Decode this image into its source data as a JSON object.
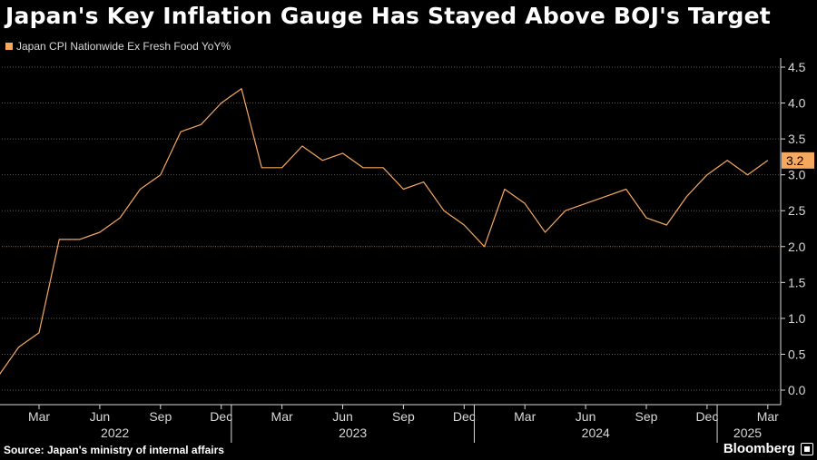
{
  "title": "Japan's Key Inflation Gauge Has Stayed Above BOJ's Target",
  "legend_label": "Japan CPI Nationwide Ex Fresh Food YoY%",
  "source": "Source: Japan's ministry of internal affairs",
  "brand": "Bloomberg",
  "colors": {
    "background": "#000000",
    "series": "#f5a85e",
    "target_line": "#c0653a",
    "grid": "#5a5a5a",
    "axis_text": "#d9d9d9"
  },
  "chart_data": {
    "type": "line",
    "title": "Japan's Key Inflation Gauge Has Stayed Above BOJ's Target",
    "series": [
      {
        "name": "Japan CPI Nationwide Ex Fresh Food YoY%",
        "x": [
          "2022-01",
          "2022-02",
          "2022-03",
          "2022-04",
          "2022-05",
          "2022-06",
          "2022-07",
          "2022-08",
          "2022-09",
          "2022-10",
          "2022-11",
          "2022-12",
          "2023-01",
          "2023-02",
          "2023-03",
          "2023-04",
          "2023-05",
          "2023-06",
          "2023-07",
          "2023-08",
          "2023-09",
          "2023-10",
          "2023-11",
          "2023-12",
          "2024-01",
          "2024-02",
          "2024-03",
          "2024-04",
          "2024-05",
          "2024-06",
          "2024-07",
          "2024-08",
          "2024-09",
          "2024-10",
          "2024-11",
          "2024-12",
          "2025-01",
          "2025-02",
          "2025-03"
        ],
        "values": [
          0.2,
          0.6,
          0.8,
          2.1,
          2.1,
          2.2,
          2.4,
          2.8,
          3.0,
          3.6,
          3.7,
          4.0,
          4.2,
          3.1,
          3.1,
          3.4,
          3.2,
          3.3,
          3.1,
          3.1,
          2.8,
          2.9,
          2.5,
          2.3,
          2.0,
          2.8,
          2.6,
          2.2,
          2.5,
          2.6,
          2.7,
          2.8,
          2.4,
          2.3,
          2.7,
          3.0,
          3.2,
          3.0,
          3.2
        ]
      }
    ],
    "reference_line": 2.0,
    "last_value_label": "3.2",
    "ylim": [
      -0.2,
      4.6
    ],
    "yticks": [
      "0.0",
      "0.5",
      "1.0",
      "1.5",
      "2.0",
      "2.5",
      "3.0",
      "3.5",
      "4.0",
      "4.5"
    ],
    "xtick_labels": [
      "Mar",
      "Jun",
      "Sep",
      "Dec",
      "Mar",
      "Jun",
      "Sep",
      "Dec",
      "Mar",
      "Jun",
      "Sep",
      "Dec",
      "Mar"
    ],
    "xtick_months": [
      "2022-03",
      "2022-06",
      "2022-09",
      "2022-12",
      "2023-03",
      "2023-06",
      "2023-09",
      "2023-12",
      "2024-03",
      "2024-06",
      "2024-09",
      "2024-12",
      "2025-03"
    ],
    "year_labels": [
      "2022",
      "2023",
      "2024",
      "2025"
    ],
    "grid": true,
    "y_axis_side": "right"
  }
}
